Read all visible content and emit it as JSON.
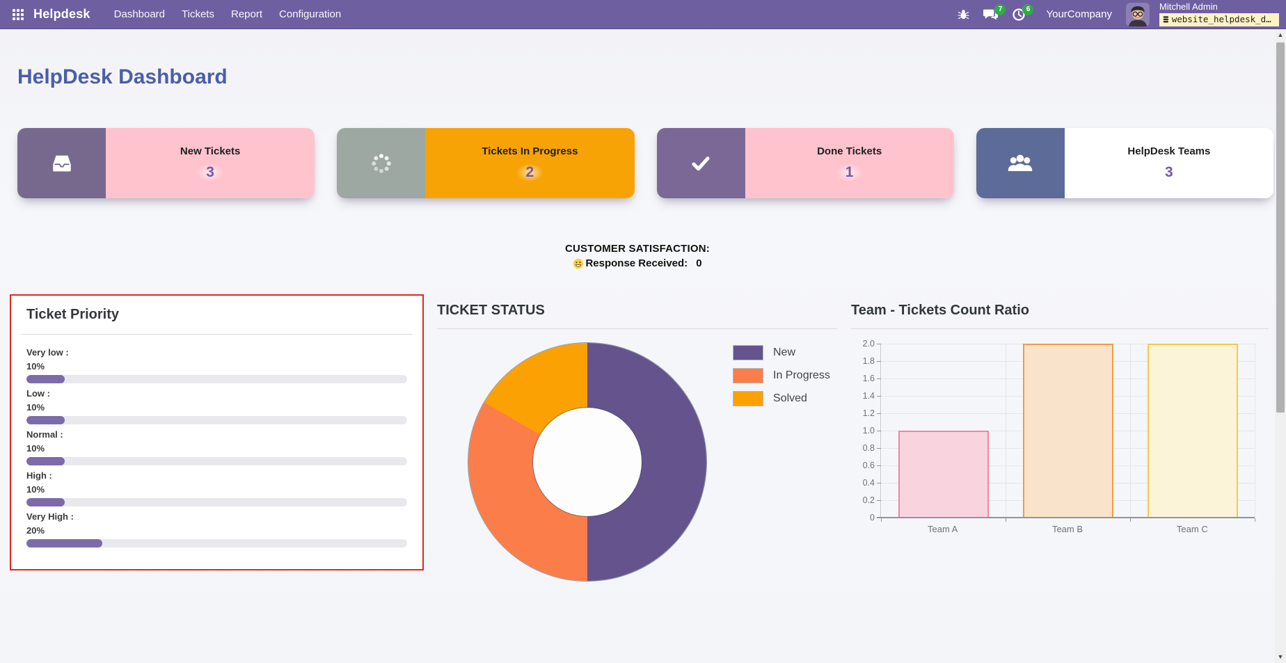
{
  "nav": {
    "app_name": "Helpdesk",
    "menus": [
      {
        "label": "Dashboard"
      },
      {
        "label": "Tickets"
      },
      {
        "label": "Report"
      },
      {
        "label": "Configuration"
      }
    ],
    "messages_badge": "7",
    "activities_badge": "6",
    "company": "YourCompany",
    "user_name": "Mitchell Admin",
    "db_name": "website_helpdesk_dashboa…"
  },
  "page": {
    "title": "HelpDesk Dashboard"
  },
  "cards": [
    {
      "title": "New Tickets",
      "value": "3",
      "icon": "inbox-icon",
      "icon_bg": "#77698e",
      "body_bg": "#ffc3ce"
    },
    {
      "title": "Tickets In Progress",
      "value": "2",
      "icon": "spinner-icon",
      "icon_bg": "#9da8a2",
      "body_bg": "#f7a306"
    },
    {
      "title": "Done Tickets",
      "value": "1",
      "icon": "check-icon",
      "icon_bg": "#7c6897",
      "body_bg": "#ffc3ce"
    },
    {
      "title": "HelpDesk Teams",
      "value": "3",
      "icon": "users-icon",
      "icon_bg": "#5d6b99",
      "body_bg": "#ffffff"
    }
  ],
  "satisfaction": {
    "heading": "CUSTOMER SATISFACTION:",
    "label": "Response Received:",
    "value": "0"
  },
  "priority_panel": {
    "title": "Ticket Priority",
    "bar_color": "#7c6ba8",
    "track_color": "#e9e9ed",
    "border_color": "#e3261a",
    "items": [
      {
        "label": "Very low :",
        "pct": "10%",
        "value": 10
      },
      {
        "label": "Low :",
        "pct": "10%",
        "value": 10
      },
      {
        "label": "Normal :",
        "pct": "10%",
        "value": 10
      },
      {
        "label": "High :",
        "pct": "10%",
        "value": 10
      },
      {
        "label": "Very High :",
        "pct": "20%",
        "value": 20
      }
    ]
  },
  "chart_data": [
    {
      "type": "pie",
      "title": "TICKET STATUS",
      "labels": [
        "New",
        "In Progress",
        "Solved"
      ],
      "values": [
        3,
        2,
        1
      ],
      "percents": [
        50,
        33.33,
        16.67
      ],
      "colors": [
        "#65538e",
        "#fb7d49",
        "#fca103"
      ],
      "donut_hole_ratio": 0.46,
      "legend_position": "right"
    },
    {
      "type": "bar",
      "title": "Team - Tickets Count Ratio",
      "categories": [
        "Team A",
        "Team B",
        "Team C"
      ],
      "values": [
        1.0,
        2.0,
        2.0
      ],
      "bar_fills": [
        "#f9d4de",
        "#fae3cb",
        "#fbf4d9"
      ],
      "bar_borders": [
        "#f286a1",
        "#f19d43",
        "#f5c94e"
      ],
      "ylim": [
        0,
        2.0
      ],
      "yticks": [
        "2.0",
        "1.8",
        "1.6",
        "1.4",
        "1.2",
        "1.0",
        "0.8",
        "0.6",
        "0.4",
        "0.2",
        "0"
      ],
      "grid": true,
      "xlabel": "",
      "ylabel": ""
    }
  ]
}
